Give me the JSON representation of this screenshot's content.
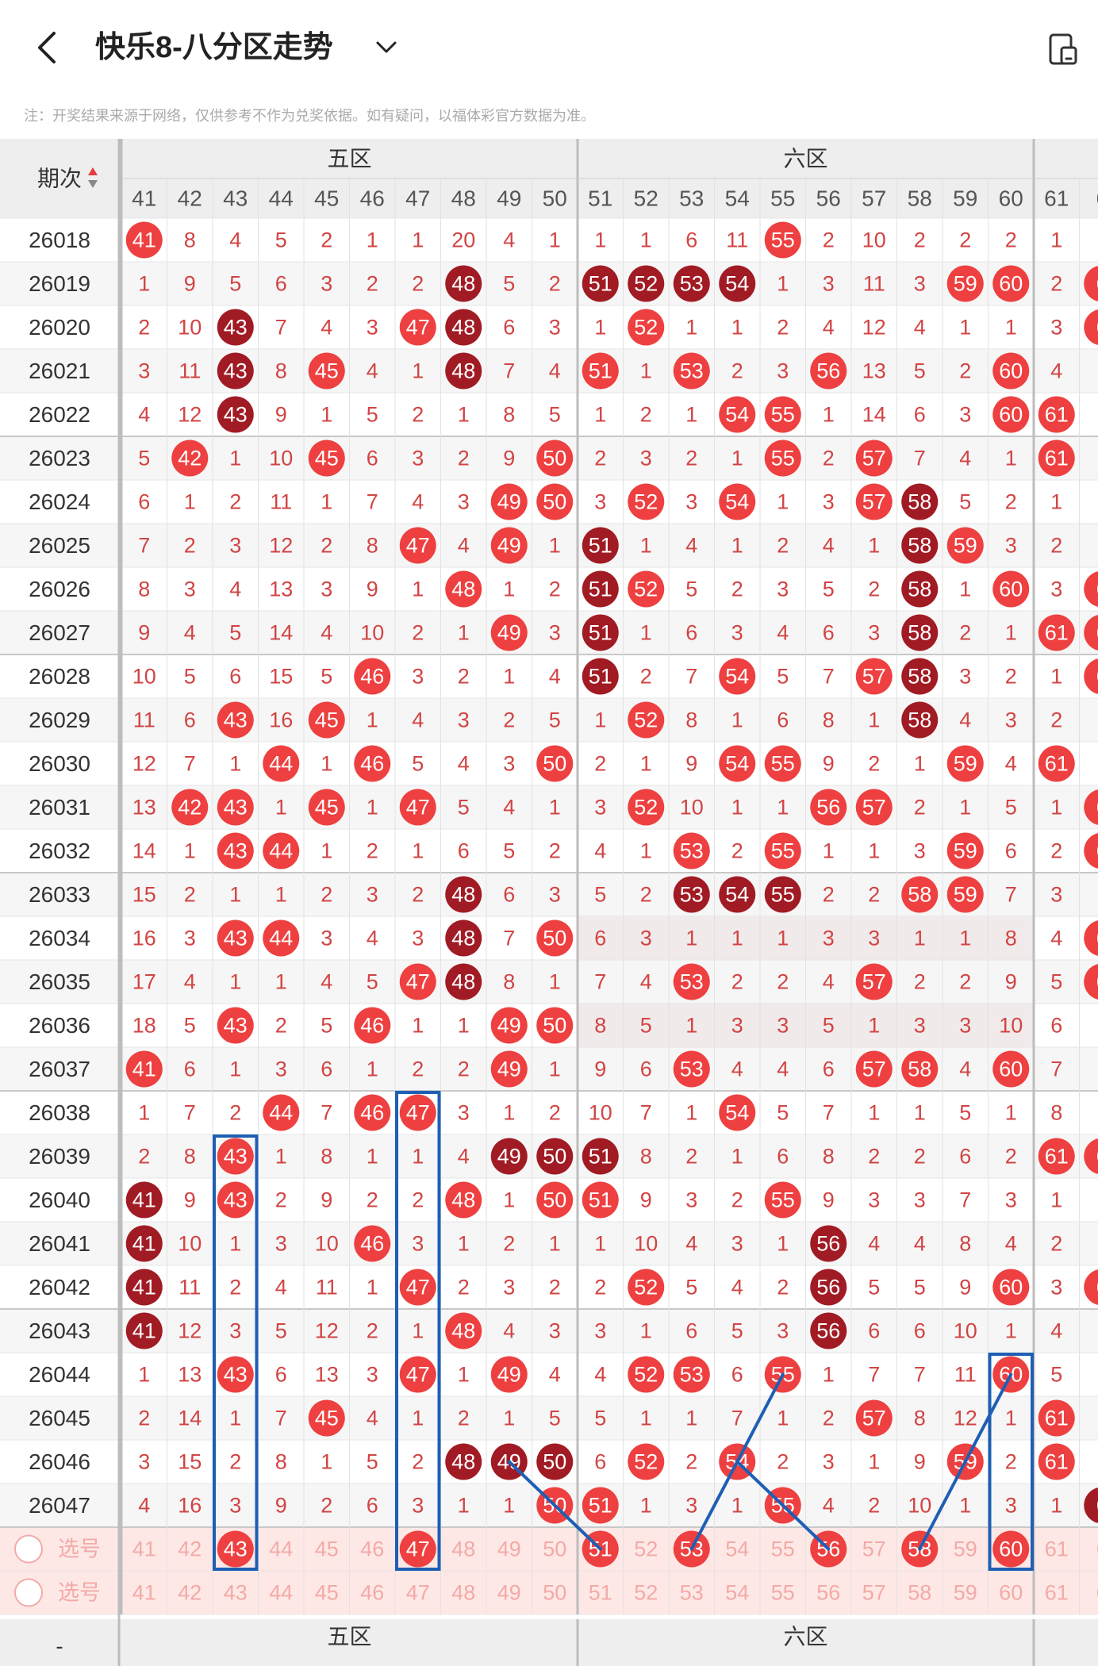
{
  "header": {
    "title": "快乐8-八分区走势",
    "back_icon": "chevron-left-icon",
    "title_menu_icon": "chevron-down-icon",
    "device_icon": "phone-layout-icon"
  },
  "note": "注：开奖结果来源于网络，仅供参考不作为兑奖依据。如有疑问，以福体彩官方数据为准。",
  "table": {
    "period_header": "期次",
    "sort_icon": "sort-up-down-icon",
    "zones": [
      "五区",
      "六区"
    ],
    "bottom_zone_labels": [
      "五区",
      "六区"
    ],
    "bottom_period_partial": "-",
    "columns": [
      "41",
      "42",
      "43",
      "44",
      "45",
      "46",
      "47",
      "48",
      "49",
      "50",
      "51",
      "52",
      "53",
      "54",
      "55",
      "56",
      "57",
      "58",
      "59",
      "60",
      "61",
      "6"
    ],
    "rows": [
      {
        "period": "26018",
        "cells": [
          "h41",
          "8",
          "4",
          "5",
          "2",
          "1",
          "1",
          "20",
          "4",
          "1",
          "1",
          "1",
          "6",
          "11",
          "h55",
          "2",
          "10",
          "2",
          "2",
          "2",
          "1",
          ""
        ]
      },
      {
        "period": "26019",
        "cells": [
          "1",
          "9",
          "5",
          "6",
          "3",
          "2",
          "2",
          "d48",
          "5",
          "2",
          "d51",
          "d52",
          "d53",
          "d54",
          "1",
          "3",
          "11",
          "3",
          "h59",
          "h60",
          "2",
          "h6"
        ]
      },
      {
        "period": "26020",
        "cells": [
          "2",
          "10",
          "d43",
          "7",
          "4",
          "3",
          "h47",
          "d48",
          "6",
          "3",
          "1",
          "h52",
          "1",
          "1",
          "2",
          "4",
          "12",
          "4",
          "1",
          "1",
          "3",
          "h6"
        ]
      },
      {
        "period": "26021",
        "cells": [
          "3",
          "11",
          "d43",
          "8",
          "h45",
          "4",
          "1",
          "d48",
          "7",
          "4",
          "h51",
          "1",
          "h53",
          "2",
          "3",
          "h56",
          "13",
          "5",
          "2",
          "h60",
          "4",
          ""
        ]
      },
      {
        "period": "26022",
        "cells": [
          "4",
          "12",
          "d43",
          "9",
          "1",
          "5",
          "2",
          "1",
          "8",
          "5",
          "1",
          "2",
          "1",
          "h54",
          "h55",
          "1",
          "14",
          "6",
          "3",
          "h60",
          "h61",
          ""
        ]
      },
      {
        "period": "26023",
        "cells": [
          "5",
          "h42",
          "1",
          "10",
          "h45",
          "6",
          "3",
          "2",
          "9",
          "h50",
          "2",
          "3",
          "2",
          "1",
          "h55",
          "2",
          "h57",
          "7",
          "4",
          "1",
          "h61",
          ""
        ]
      },
      {
        "period": "26024",
        "cells": [
          "6",
          "1",
          "2",
          "11",
          "1",
          "7",
          "4",
          "3",
          "h49",
          "h50",
          "3",
          "h52",
          "3",
          "h54",
          "1",
          "3",
          "h57",
          "d58",
          "5",
          "2",
          "1",
          ""
        ]
      },
      {
        "period": "26025",
        "cells": [
          "7",
          "2",
          "3",
          "12",
          "2",
          "8",
          "h47",
          "4",
          "h49",
          "1",
          "d51",
          "1",
          "4",
          "1",
          "2",
          "4",
          "1",
          "d58",
          "h59",
          "3",
          "2",
          ""
        ]
      },
      {
        "period": "26026",
        "cells": [
          "8",
          "3",
          "4",
          "13",
          "3",
          "9",
          "1",
          "h48",
          "1",
          "2",
          "d51",
          "h52",
          "5",
          "2",
          "3",
          "5",
          "2",
          "d58",
          "1",
          "h60",
          "3",
          "h6"
        ]
      },
      {
        "period": "26027",
        "cells": [
          "9",
          "4",
          "5",
          "14",
          "4",
          "10",
          "2",
          "1",
          "h49",
          "3",
          "d51",
          "1",
          "6",
          "3",
          "4",
          "6",
          "3",
          "d58",
          "2",
          "1",
          "h61",
          "h6"
        ]
      },
      {
        "period": "26028",
        "cells": [
          "10",
          "5",
          "6",
          "15",
          "5",
          "h46",
          "3",
          "2",
          "1",
          "4",
          "d51",
          "2",
          "7",
          "h54",
          "5",
          "7",
          "h57",
          "d58",
          "3",
          "2",
          "1",
          "h6"
        ]
      },
      {
        "period": "26029",
        "cells": [
          "11",
          "6",
          "h43",
          "16",
          "h45",
          "1",
          "4",
          "3",
          "2",
          "5",
          "1",
          "h52",
          "8",
          "1",
          "6",
          "8",
          "1",
          "d58",
          "4",
          "3",
          "2",
          ""
        ]
      },
      {
        "period": "26030",
        "cells": [
          "12",
          "7",
          "1",
          "h44",
          "1",
          "h46",
          "5",
          "4",
          "3",
          "h50",
          "2",
          "1",
          "9",
          "h54",
          "h55",
          "9",
          "2",
          "1",
          "h59",
          "4",
          "h61",
          ""
        ]
      },
      {
        "period": "26031",
        "cells": [
          "13",
          "h42",
          "h43",
          "1",
          "h45",
          "1",
          "h47",
          "5",
          "4",
          "1",
          "3",
          "h52",
          "10",
          "1",
          "1",
          "h56",
          "h57",
          "2",
          "1",
          "5",
          "1",
          "h6"
        ]
      },
      {
        "period": "26032",
        "cells": [
          "14",
          "1",
          "h43",
          "h44",
          "1",
          "2",
          "1",
          "6",
          "5",
          "2",
          "4",
          "1",
          "h53",
          "2",
          "h55",
          "1",
          "1",
          "3",
          "h59",
          "6",
          "2",
          "h6"
        ]
      },
      {
        "period": "26033",
        "cells": [
          "15",
          "2",
          "1",
          "1",
          "2",
          "3",
          "2",
          "d48",
          "6",
          "3",
          "5",
          "2",
          "d53",
          "d54",
          "d55",
          "2",
          "2",
          "h58",
          "h59",
          "7",
          "3",
          ""
        ]
      },
      {
        "period": "26034",
        "cells": [
          "16",
          "3",
          "h43",
          "h44",
          "3",
          "4",
          "3",
          "d48",
          "7",
          "h50",
          "6",
          "3",
          "1",
          "1",
          "1",
          "3",
          "3",
          "1",
          "1",
          "8",
          "4",
          "h6"
        ]
      },
      {
        "period": "26035",
        "cells": [
          "17",
          "4",
          "1",
          "1",
          "4",
          "5",
          "h47",
          "d48",
          "8",
          "1",
          "7",
          "4",
          "h53",
          "2",
          "2",
          "4",
          "h57",
          "2",
          "2",
          "9",
          "5",
          "h6"
        ]
      },
      {
        "period": "26036",
        "cells": [
          "18",
          "5",
          "h43",
          "2",
          "5",
          "h46",
          "1",
          "1",
          "h49",
          "h50",
          "8",
          "5",
          "1",
          "3",
          "3",
          "5",
          "1",
          "3",
          "3",
          "10",
          "6",
          ""
        ]
      },
      {
        "period": "26037",
        "cells": [
          "h41",
          "6",
          "1",
          "3",
          "6",
          "1",
          "2",
          "2",
          "h49",
          "1",
          "9",
          "6",
          "h53",
          "4",
          "4",
          "6",
          "h57",
          "h58",
          "4",
          "h60",
          "7",
          ""
        ]
      },
      {
        "period": "26038",
        "cells": [
          "1",
          "7",
          "2",
          "h44",
          "7",
          "h46",
          "h47",
          "3",
          "1",
          "2",
          "10",
          "7",
          "1",
          "h54",
          "5",
          "7",
          "1",
          "1",
          "5",
          "1",
          "8",
          ""
        ]
      },
      {
        "period": "26039",
        "cells": [
          "2",
          "8",
          "h43",
          "1",
          "8",
          "1",
          "1",
          "4",
          "d49",
          "d50",
          "d51",
          "8",
          "2",
          "1",
          "6",
          "8",
          "2",
          "2",
          "6",
          "2",
          "h61",
          "h6"
        ]
      },
      {
        "period": "26040",
        "cells": [
          "d41",
          "9",
          "h43",
          "2",
          "9",
          "2",
          "2",
          "h48",
          "1",
          "h50",
          "h51",
          "9",
          "3",
          "2",
          "h55",
          "9",
          "3",
          "3",
          "7",
          "3",
          "1",
          ""
        ]
      },
      {
        "period": "26041",
        "cells": [
          "d41",
          "10",
          "1",
          "3",
          "10",
          "h46",
          "3",
          "1",
          "2",
          "1",
          "1",
          "10",
          "4",
          "3",
          "1",
          "d56",
          "4",
          "4",
          "8",
          "4",
          "2",
          ""
        ]
      },
      {
        "period": "26042",
        "cells": [
          "d41",
          "11",
          "2",
          "4",
          "11",
          "1",
          "h47",
          "2",
          "3",
          "2",
          "2",
          "h52",
          "5",
          "4",
          "2",
          "d56",
          "5",
          "5",
          "9",
          "h60",
          "3",
          "h6"
        ]
      },
      {
        "period": "26043",
        "cells": [
          "d41",
          "12",
          "3",
          "5",
          "12",
          "2",
          "1",
          "h48",
          "4",
          "3",
          "3",
          "1",
          "6",
          "5",
          "3",
          "d56",
          "6",
          "6",
          "10",
          "1",
          "4",
          ""
        ]
      },
      {
        "period": "26044",
        "cells": [
          "1",
          "13",
          "h43",
          "6",
          "13",
          "3",
          "h47",
          "1",
          "h49",
          "4",
          "4",
          "h52",
          "h53",
          "6",
          "h55",
          "1",
          "7",
          "7",
          "11",
          "h60",
          "5",
          ""
        ]
      },
      {
        "period": "26045",
        "cells": [
          "2",
          "14",
          "1",
          "7",
          "h45",
          "4",
          "1",
          "2",
          "1",
          "5",
          "5",
          "1",
          "1",
          "7",
          "1",
          "2",
          "h57",
          "8",
          "12",
          "1",
          "h61",
          ""
        ]
      },
      {
        "period": "26046",
        "cells": [
          "3",
          "15",
          "2",
          "8",
          "1",
          "5",
          "2",
          "d48",
          "d49",
          "d50",
          "6",
          "h52",
          "2",
          "h54",
          "2",
          "3",
          "1",
          "9",
          "h59",
          "2",
          "h61",
          ""
        ]
      },
      {
        "period": "26047",
        "cells": [
          "4",
          "16",
          "3",
          "9",
          "2",
          "6",
          "3",
          "1",
          "1",
          "h50",
          "h51",
          "1",
          "3",
          "1",
          "h55",
          "4",
          "2",
          "10",
          "1",
          "3",
          "1",
          "d6"
        ]
      }
    ],
    "select_rows": [
      {
        "label": "选号",
        "selected": [
          "43",
          "47",
          "51",
          "53",
          "56",
          "58",
          "60"
        ]
      },
      {
        "label": "选号",
        "selected": []
      }
    ]
  },
  "colors": {
    "hit_ball": "#ee4040",
    "repeat_ball": "#a11b24",
    "miss_text": "#d24444",
    "period_text": "#333333",
    "highlight_box": "#1e5fb4",
    "line": "#1e5fb4",
    "select_row_bg": "#fde8e6",
    "select_text": "#f3aaa6",
    "band_bg": "#f1eaea"
  }
}
